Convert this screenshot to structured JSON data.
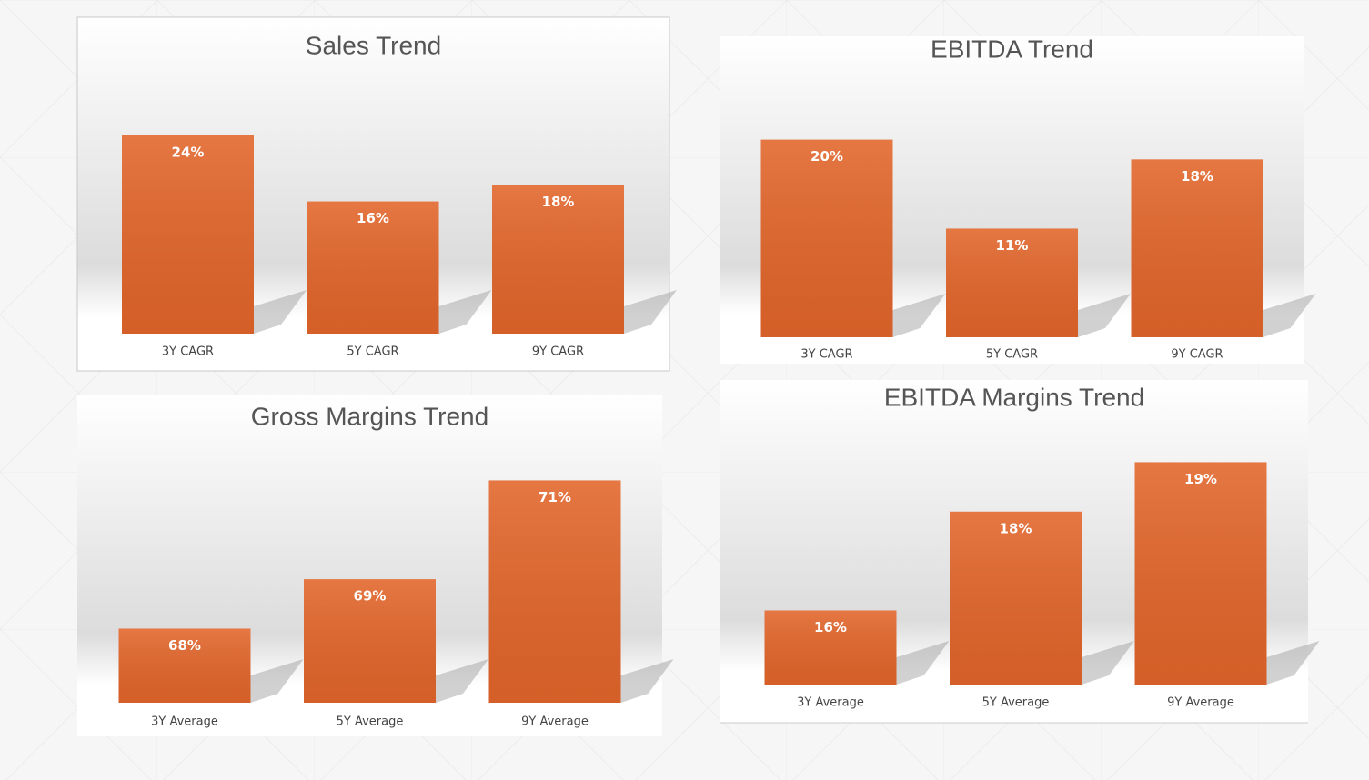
{
  "chart_data": [
    {
      "type": "bar",
      "title": "Sales Trend",
      "categories": [
        "3Y CAGR",
        "5Y CAGR",
        "9Y CAGR"
      ],
      "values": [
        24,
        16,
        18
      ],
      "value_labels": [
        "24%",
        "16%",
        "18%"
      ],
      "color": "#e2652a",
      "ylim": [
        0,
        27.5
      ]
    },
    {
      "type": "bar",
      "title": "EBITDA Trend",
      "categories": [
        "3Y CAGR",
        "5Y CAGR",
        "9Y CAGR"
      ],
      "values": [
        20,
        11,
        18
      ],
      "value_labels": [
        "20%",
        "11%",
        "18%"
      ],
      "color": "#e2652a",
      "ylim": [
        0,
        23
      ]
    },
    {
      "type": "bar",
      "title": "Gross Margins Trend",
      "categories": [
        "3Y Average",
        "5Y Average",
        "9Y Average"
      ],
      "values": [
        68,
        69,
        71
      ],
      "value_labels": [
        "68%",
        "69%",
        "71%"
      ],
      "color": "#e2652a",
      "ylim": [
        66.5,
        71.1
      ]
    },
    {
      "type": "bar",
      "title": "EBITDA Margins Trend",
      "categories": [
        "3Y Average",
        "5Y Average",
        "9Y Average"
      ],
      "values": [
        16,
        18,
        19
      ],
      "value_labels": [
        "16%",
        "18%",
        "19%"
      ],
      "color": "#e2652a",
      "ylim": [
        14.5,
        19.1
      ]
    }
  ]
}
